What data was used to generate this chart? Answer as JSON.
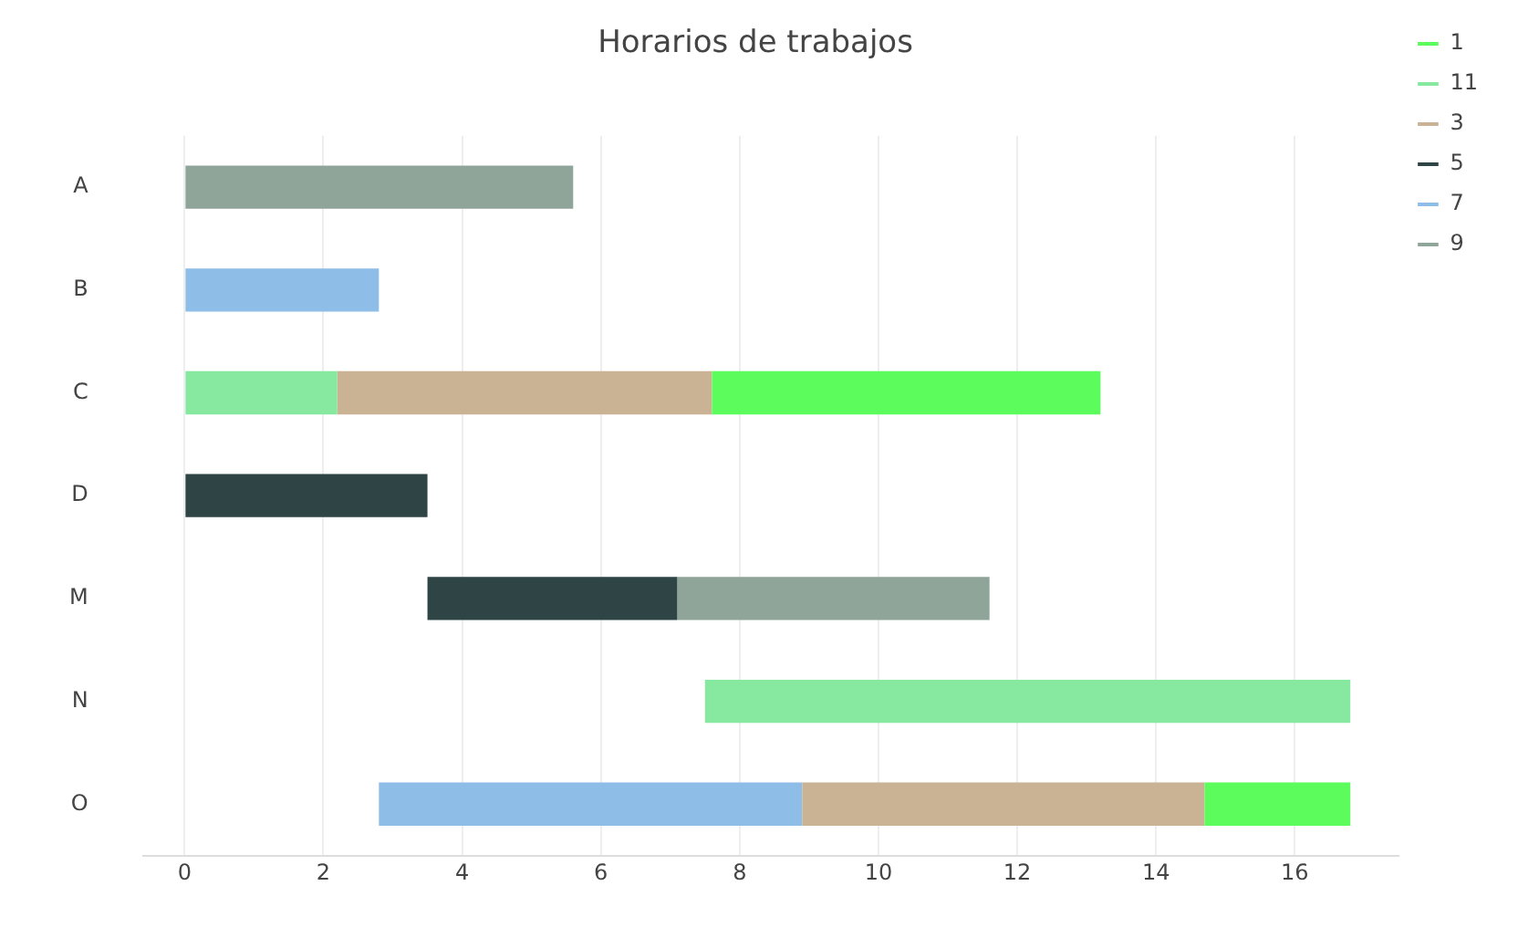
{
  "chart_data": {
    "type": "bar",
    "orientation": "horizontal",
    "title": "Horarios de trabajos",
    "categories": [
      "A",
      "B",
      "C",
      "D",
      "M",
      "N",
      "O"
    ],
    "series": [
      {
        "name": "1",
        "color": "#5cfc5c",
        "base": [
          null,
          null,
          7.6,
          null,
          null,
          null,
          14.7
        ],
        "values": [
          null,
          null,
          5.6,
          null,
          null,
          null,
          2.1
        ]
      },
      {
        "name": "11",
        "color": "#87e8a0",
        "base": [
          null,
          null,
          0,
          null,
          null,
          7.5,
          null
        ],
        "values": [
          null,
          null,
          2.2,
          null,
          null,
          9.3,
          null
        ]
      },
      {
        "name": "3",
        "color": "#c9b394",
        "base": [
          null,
          null,
          2.2,
          null,
          null,
          null,
          8.9
        ],
        "values": [
          null,
          null,
          5.4,
          null,
          null,
          null,
          5.8
        ]
      },
      {
        "name": "5",
        "color": "#2f4444",
        "base": [
          null,
          null,
          null,
          0,
          3.5,
          null,
          null
        ],
        "values": [
          null,
          null,
          null,
          3.5,
          3.6,
          null,
          null
        ]
      },
      {
        "name": "7",
        "color": "#8ebde8",
        "base": [
          null,
          0,
          null,
          null,
          null,
          null,
          2.8
        ],
        "values": [
          null,
          2.8,
          null,
          null,
          null,
          null,
          6.1
        ]
      },
      {
        "name": "9",
        "color": "#90a59a",
        "base": [
          0,
          null,
          null,
          null,
          7.1,
          null,
          null
        ],
        "values": [
          5.6,
          null,
          null,
          null,
          4.5,
          null,
          null
        ]
      }
    ],
    "xlim": [
      -0.6,
      17.5
    ],
    "xticks": [
      0,
      2,
      4,
      6,
      8,
      10,
      12,
      14,
      16
    ],
    "grid": "x",
    "legend": "top right"
  }
}
